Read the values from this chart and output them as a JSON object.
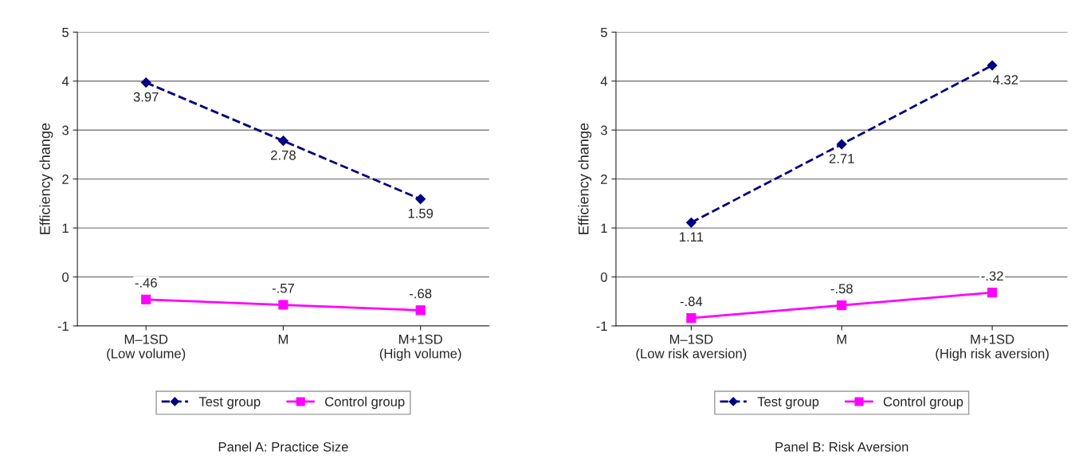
{
  "chart_data": [
    {
      "type": "line",
      "title": "Panel A: Practice Size",
      "ylabel": "Efficiency change",
      "categories": [
        "M–1SD\n(Low volume)",
        "M",
        "M+1SD\n(High volume)"
      ],
      "series": [
        {
          "name": "Test group",
          "color": "#000080",
          "values": [
            3.97,
            2.78,
            1.59
          ],
          "value_labels": [
            "3.97",
            "2.78",
            "1.59"
          ],
          "marker": "diamond",
          "line_style": "dashed"
        },
        {
          "name": "Control group",
          "color": "#ff00ff",
          "values": [
            -0.46,
            -0.57,
            -0.68
          ],
          "value_labels": [
            "-.46",
            "-.57",
            "-.68"
          ],
          "marker": "square",
          "line_style": "solid"
        }
      ],
      "ylim": [
        -1,
        5
      ],
      "yticks": [
        -1,
        0,
        1,
        2,
        3,
        4,
        5
      ],
      "grid": "y",
      "legend": "bottom"
    },
    {
      "type": "line",
      "title": "Panel B: Risk Aversion",
      "ylabel": "Efficiency change",
      "categories": [
        "M–1SD\n(Low risk aversion)",
        "M",
        "M+1SD\n(High risk aversion)"
      ],
      "series": [
        {
          "name": "Test group",
          "color": "#000080",
          "values": [
            1.11,
            2.71,
            4.32
          ],
          "value_labels": [
            "1.11",
            "2.71",
            "4.32"
          ],
          "marker": "diamond",
          "line_style": "dashed"
        },
        {
          "name": "Control group",
          "color": "#ff00ff",
          "values": [
            -0.84,
            -0.58,
            -0.32
          ],
          "value_labels": [
            "-.84",
            "-.58",
            "-.32"
          ],
          "marker": "square",
          "line_style": "solid"
        }
      ],
      "ylim": [
        -1,
        5
      ],
      "yticks": [
        -1,
        0,
        1,
        2,
        3,
        4,
        5
      ],
      "grid": "y",
      "legend": "bottom"
    }
  ]
}
